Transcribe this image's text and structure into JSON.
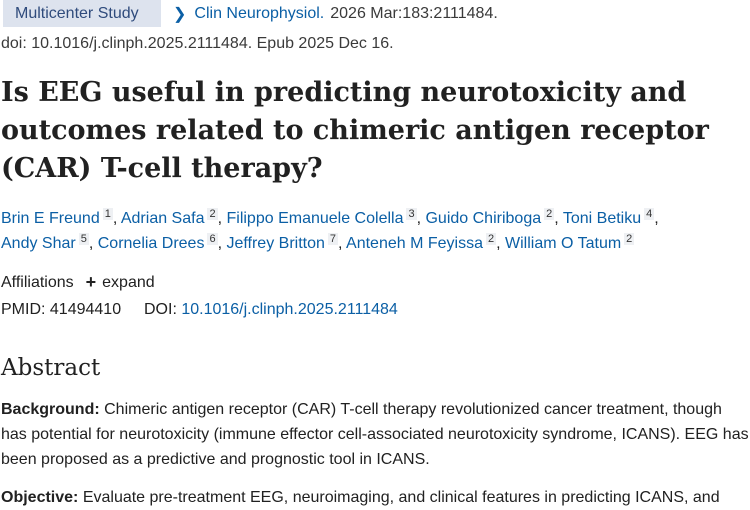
{
  "header": {
    "pub_type": "Multicenter Study",
    "journal": "Clin Neurophysiol.",
    "citation": "2026 Mar:183:2111484.",
    "doi_line": "doi: 10.1016/j.clinph.2025.2111484. Epub 2025 Dec 16."
  },
  "title": "Is EEG useful in predicting neurotoxicity and outcomes related to chimeric antigen receptor (CAR) T-cell therapy?",
  "authors": [
    {
      "name": "Brin E Freund",
      "aff": "1",
      "sep": ", "
    },
    {
      "name": "Adrian Safa",
      "aff": "2",
      "sep": ", "
    },
    {
      "name": "Filippo Emanuele Colella",
      "aff": "3",
      "sep": ", "
    },
    {
      "name": "Guido Chiriboga",
      "aff": "2",
      "sep": ", "
    },
    {
      "name": "Toni Betiku",
      "aff": "4",
      "sep": ","
    },
    {
      "name": "Andy Shar",
      "aff": "5",
      "sep": ", "
    },
    {
      "name": "Cornelia Drees",
      "aff": "6",
      "sep": ", "
    },
    {
      "name": "Jeffrey Britton",
      "aff": "7",
      "sep": ", "
    },
    {
      "name": "Anteneh M Feyissa",
      "aff": "2",
      "sep": ", "
    },
    {
      "name": "William O Tatum",
      "aff": "2",
      "sep": ""
    }
  ],
  "affiliations": {
    "label": "Affiliations",
    "expand": "expand"
  },
  "ids": {
    "pmid_label": "PMID:",
    "pmid": "41494410",
    "doi_label": "DOI:",
    "doi": "10.1016/j.clinph.2025.2111484"
  },
  "abstract": {
    "heading": "Abstract",
    "background_label": "Background:",
    "background_text": "Chimeric antigen receptor (CAR) T-cell therapy revolutionized cancer treatment, though has potential for neurotoxicity (immune effector cell-associated neurotoxicity syndrome, ICANS). EEG has been proposed as a predictive and prognostic tool in ICANS.",
    "objective_label": "Objective:",
    "objective_text": "Evaluate pre-treatment EEG, neuroimaging, and clinical features in predicting ICANS, and"
  }
}
